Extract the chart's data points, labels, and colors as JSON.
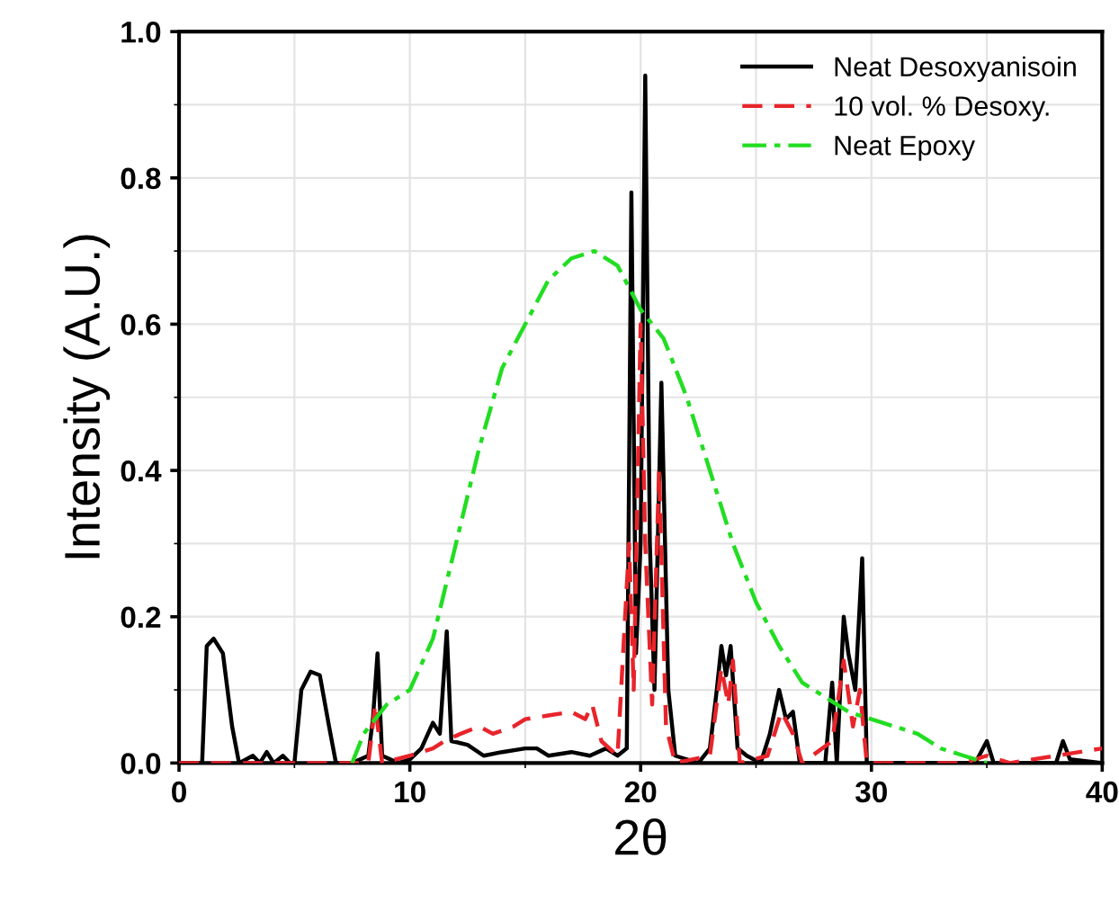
{
  "chart_data": {
    "type": "line",
    "xlabel": "2θ",
    "ylabel": "Intensity (A.U.)",
    "xlim": [
      0,
      40
    ],
    "ylim": [
      0,
      1.0
    ],
    "xticks": [
      0,
      10,
      20,
      30,
      40
    ],
    "yticks": [
      {
        "value": 0,
        "label": "0.0"
      },
      {
        "value": 0.2,
        "label": "0.2"
      },
      {
        "value": 0.4,
        "label": "0.4"
      },
      {
        "value": 0.6,
        "label": "0.6"
      },
      {
        "value": 0.8,
        "label": "0.8"
      },
      {
        "value": 1.0,
        "label": "1.0"
      }
    ],
    "grid": true,
    "legend": "top right",
    "marker": "none",
    "series": [
      {
        "name": "Neat Desoxyanisoin",
        "color": "#000000",
        "line_style": "solid",
        "x": [
          0,
          1.0,
          1.2,
          1.5,
          1.9,
          2.3,
          2.6,
          3.2,
          3.5,
          3.8,
          4.1,
          4.5,
          4.8,
          5.0,
          5.3,
          5.7,
          6.1,
          6.5,
          6.8,
          7.5,
          8.2,
          8.4,
          8.6,
          8.8,
          9.5,
          10,
          10.5,
          11.0,
          11.3,
          11.6,
          11.8,
          12.5,
          13.2,
          14,
          15,
          15.5,
          16,
          17,
          17.8,
          18.5,
          19,
          19.4,
          19.6,
          19.8,
          20.0,
          20.2,
          20.4,
          20.6,
          20.9,
          21.2,
          21.5,
          22.5,
          23.0,
          23.3,
          23.5,
          23.7,
          23.9,
          24.2,
          24.6,
          25.2,
          25.6,
          26.0,
          26.3,
          26.6,
          26.9,
          28.0,
          28.3,
          28.5,
          28.8,
          29.0,
          29.3,
          29.6,
          29.8,
          34.5,
          35,
          35.3,
          38,
          38.3,
          38.6,
          40
        ],
        "values": [
          0,
          0,
          0.16,
          0.17,
          0.15,
          0.05,
          0,
          0.01,
          0,
          0.015,
          0,
          0.01,
          0,
          0,
          0.1,
          0.125,
          0.12,
          0.05,
          0,
          0,
          0.01,
          0.06,
          0.15,
          0.01,
          0,
          0.005,
          0.02,
          0.055,
          0.04,
          0.18,
          0.03,
          0.025,
          0.01,
          0.015,
          0.02,
          0.02,
          0.01,
          0.015,
          0.01,
          0.02,
          0.01,
          0.02,
          0.78,
          0.15,
          0.3,
          0.94,
          0.3,
          0.1,
          0.52,
          0.1,
          0.01,
          0,
          0.02,
          0.1,
          0.16,
          0.12,
          0.16,
          0.02,
          0.01,
          0,
          0.04,
          0.1,
          0.06,
          0.07,
          0,
          0,
          0.11,
          0,
          0.2,
          0.15,
          0.1,
          0.28,
          0,
          0,
          0.03,
          0,
          0,
          0.03,
          0.005,
          0
        ]
      },
      {
        "name": "10 vol. % Desoxy.",
        "color": "#e8242b",
        "line_style": "dashed",
        "x": [
          0,
          8.2,
          8.5,
          8.8,
          10,
          11,
          11.5,
          12.2,
          13,
          13.6,
          14.5,
          15,
          16,
          17,
          17.6,
          17.9,
          18.3,
          19,
          19.5,
          19.7,
          20.0,
          20.2,
          20.5,
          20.8,
          21.1,
          21.5,
          23.0,
          23.5,
          23.8,
          24.0,
          24.3,
          25.5,
          26.1,
          26.6,
          27,
          28.3,
          28.8,
          29.2,
          29.5,
          29.8,
          34,
          35,
          36,
          40
        ],
        "values": [
          0,
          0,
          0.08,
          0,
          0.01,
          0.02,
          0.03,
          0.04,
          0.05,
          0.04,
          0.05,
          0.06,
          0.065,
          0.07,
          0.06,
          0.08,
          0.03,
          0.01,
          0.3,
          0.1,
          0.6,
          0.3,
          0.08,
          0.4,
          0.05,
          0,
          0.01,
          0.13,
          0.08,
          0.14,
          0,
          0.01,
          0.07,
          0.04,
          0,
          0.03,
          0.14,
          0.05,
          0.1,
          0,
          0,
          0.01,
          0,
          0.02
        ]
      },
      {
        "name": "Neat Epoxy",
        "color": "#22dd22",
        "line_style": "dashdot",
        "x": [
          7.5,
          8,
          9,
          10,
          11,
          12,
          13,
          14,
          15,
          16,
          17,
          18,
          19,
          20,
          21,
          22,
          23,
          24,
          25,
          26,
          27,
          28,
          29,
          30,
          31,
          32,
          33,
          34,
          35
        ],
        "values": [
          0,
          0.04,
          0.08,
          0.1,
          0.17,
          0.3,
          0.43,
          0.54,
          0.6,
          0.66,
          0.69,
          0.7,
          0.68,
          0.62,
          0.58,
          0.5,
          0.4,
          0.3,
          0.22,
          0.16,
          0.11,
          0.09,
          0.07,
          0.06,
          0.05,
          0.04,
          0.02,
          0.01,
          0
        ]
      }
    ]
  }
}
